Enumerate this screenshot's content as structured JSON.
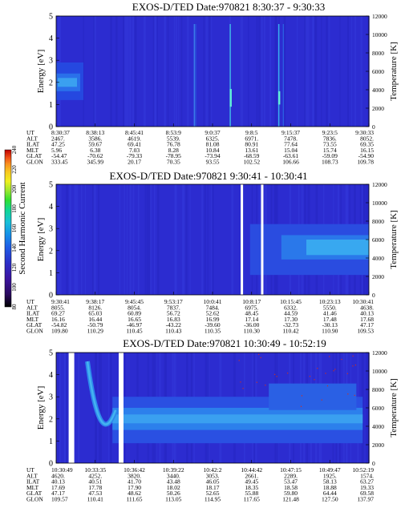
{
  "colorbar": {
    "label": "Second Harmonic Current",
    "ticks": [
      "80",
      "100",
      "120",
      "140",
      "160",
      "180",
      "200",
      "220",
      "240"
    ],
    "colors": [
      "#000000",
      "#2a0a5e",
      "#3b14a0",
      "#2b2ec8",
      "#1f5ce6",
      "#1590e8",
      "#18c0d8",
      "#10d890",
      "#30e030",
      "#9ae830",
      "#f0f020",
      "#f8c820",
      "#f89020",
      "#f05018",
      "#e01010",
      "#b00000"
    ]
  },
  "chart_data": [
    {
      "type": "heatmap",
      "title": "EXOS-D/TED   Date:970821   8:30:37 - 9:30:33",
      "ylabel": "Energy [eV]",
      "y2label": "Temperature [K]",
      "yticks": [
        "0",
        "1",
        "2",
        "3",
        "4",
        "5"
      ],
      "y2ticks": [
        "0",
        "2000",
        "4000",
        "6000",
        "8000",
        "10000",
        "12000"
      ],
      "ylim": [
        0,
        5
      ],
      "y2lim": [
        0,
        12000
      ],
      "orbit_labels": [
        "UT",
        "ALT",
        "ILAT",
        "MLT",
        "GLAT",
        "GLON"
      ],
      "orbit_rows": [
        [
          "8:30:37",
          "8:38:13",
          "8:45:41",
          "8:53:9",
          "9:0:37",
          "9:8:5",
          "9:15:37",
          "9:23:5",
          "9:30:33"
        ],
        [
          "2467.",
          "3586.",
          "4619.",
          "5539.",
          "6325.",
          "6971.",
          "7478.",
          "7836.",
          "8052."
        ],
        [
          "47.25",
          "59.67",
          "69.41",
          "76.78",
          "81.08",
          "80.91",
          "77.64",
          "73.55",
          "69.35"
        ],
        [
          "5.96",
          "6.38",
          "7.03",
          "8.28",
          "10.84",
          "13.61",
          "15.04",
          "15.74",
          "16.15"
        ],
        [
          "-54.47",
          "-70.62",
          "-79.33",
          "-78.95",
          "-73.94",
          "-68.59",
          "-63.61",
          "-59.09",
          "-54.90"
        ],
        [
          "333.45",
          "345.99",
          "20.17",
          "70.35",
          "93.55",
          "102.52",
          "106.66",
          "108.73",
          "109.78"
        ]
      ]
    },
    {
      "type": "heatmap",
      "title": "EXOS-D/TED   Date:970821   9:30:41 - 10:30:41",
      "ylabel": "Energy [eV]",
      "y2label": "Temperature [K]",
      "yticks": [
        "0",
        "1",
        "2",
        "3",
        "4",
        "5"
      ],
      "y2ticks": [
        "0",
        "2000",
        "4000",
        "6000",
        "8000",
        "10000",
        "12000"
      ],
      "ylim": [
        0,
        5
      ],
      "y2lim": [
        0,
        12000
      ],
      "orbit_labels": [
        "UT",
        "ALT",
        "ILAT",
        "MLT",
        "GLAT",
        "GLON"
      ],
      "orbit_rows": [
        [
          "9:30:41",
          "9:38:17",
          "9:45:45",
          "9:53:17",
          "10:0:41",
          "10:8:17",
          "10:15:45",
          "10:23:13",
          "10:30:41"
        ],
        [
          "8055.",
          "8126.",
          "8054.",
          "7837.",
          "7484.",
          "6975.",
          "6332.",
          "5550.",
          "4638."
        ],
        [
          "69.27",
          "65.03",
          "60.89",
          "56.72",
          "52.62",
          "48.45",
          "44.59",
          "41.46",
          "40.13"
        ],
        [
          "16.16",
          "16.44",
          "16.65",
          "16.83",
          "16.99",
          "17.14",
          "17.30",
          "17.48",
          "17.68"
        ],
        [
          "-54.82",
          "-50.79",
          "-46.97",
          "-43.22",
          "-39.60",
          "-36.00",
          "-32.73",
          "-30.13",
          "47.17"
        ],
        [
          "109.80",
          "110.29",
          "110.45",
          "110.43",
          "110.35",
          "110.30",
          "110.42",
          "110.90",
          "109.53"
        ]
      ]
    },
    {
      "type": "heatmap",
      "title": "EXOS-D/TED   Date:970821   10:30:49 - 10:52:19",
      "ylabel": "Energy [eV]",
      "y2label": "Temperature [K]",
      "yticks": [
        "0",
        "1",
        "2",
        "3",
        "4",
        "5"
      ],
      "y2ticks": [
        "0",
        "2000",
        "4000",
        "6000",
        "8000",
        "10000",
        "12000"
      ],
      "ylim": [
        0,
        5
      ],
      "y2lim": [
        0,
        12000
      ],
      "orbit_labels": [
        "UT",
        "ALT",
        "ILAT",
        "MLT",
        "GLAT",
        "GLON"
      ],
      "orbit_rows": [
        [
          "10:30:49",
          "10:33:35",
          "10:36:42",
          "10:39:22",
          "10:42:2",
          "10:44:42",
          "10:47:15",
          "10:49:47",
          "10:52:19"
        ],
        [
          "4620.",
          "4252.",
          "3820.",
          "3440.",
          "3053.",
          "2661.",
          "2289.",
          "1925.",
          "1574."
        ],
        [
          "40.13",
          "40.51",
          "41.70",
          "43.48",
          "46.05",
          "49.45",
          "53.47",
          "58.13",
          "63.27"
        ],
        [
          "17.69",
          "17.78",
          "17.90",
          "18.02",
          "18.17",
          "18.35",
          "18.58",
          "18.88",
          "19.33"
        ],
        [
          "47.17",
          "47.53",
          "48.62",
          "50.26",
          "52.65",
          "55.88",
          "59.80",
          "64.44",
          "69.58"
        ],
        [
          "109.57",
          "110.41",
          "111.65",
          "113.05",
          "114.95",
          "117.65",
          "121.48",
          "127.50",
          "137.97"
        ]
      ]
    }
  ]
}
